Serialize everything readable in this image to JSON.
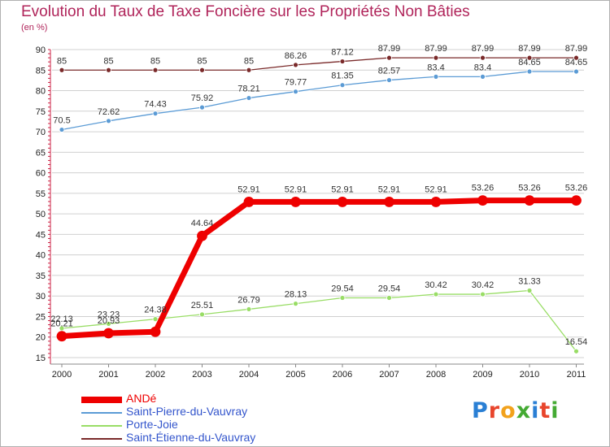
{
  "title": "Evolution du Taux de Taxe Foncière sur les Propriétés Non Bâties",
  "unit_label": "(en %)",
  "logo": "Proxiti",
  "colors": {
    "title": "#b0245a",
    "axis": "#cc2244",
    "grid": "#d0d0d0"
  },
  "chart_data": {
    "type": "line",
    "title": "Evolution du Taux de Taxe Foncière sur les Propriétés Non Bâties",
    "ylabel": "(en %)",
    "xlabel": "",
    "ylim": [
      15,
      90
    ],
    "yticks": [
      15,
      20,
      25,
      30,
      35,
      40,
      45,
      50,
      55,
      60,
      65,
      70,
      75,
      80,
      85,
      90
    ],
    "grid": true,
    "categories": [
      "2000",
      "2001",
      "2002",
      "2003",
      "2004",
      "2005",
      "2006",
      "2007",
      "2008",
      "2009",
      "2010",
      "2011"
    ],
    "series": [
      {
        "name": "ANDé",
        "color": "#ee0000",
        "values": [
          20.21,
          20.93,
          21.28,
          44.64,
          52.91,
          52.91,
          52.91,
          52.91,
          52.91,
          53.26,
          53.26,
          53.26
        ],
        "labels": [
          "20.21",
          "20.93",
          "",
          "44.64",
          "52.91",
          "52.91",
          "52.91",
          "52.91",
          "52.91",
          "53.26",
          "53.26",
          "53.26"
        ]
      },
      {
        "name": "Saint-Pierre-du-Vauvray",
        "color": "#5b9bd5",
        "values": [
          70.5,
          72.62,
          74.43,
          75.92,
          78.21,
          79.77,
          81.35,
          82.57,
          83.4,
          83.4,
          84.65,
          84.65
        ],
        "labels": [
          "70.5",
          "72.62",
          "74.43",
          "75.92",
          "78.21",
          "79.77",
          "81.35",
          "82.57",
          "83.4",
          "83.4",
          "84.65",
          "84.65"
        ]
      },
      {
        "name": "Porte-Joie",
        "color": "#99dd66",
        "values": [
          22.13,
          23.23,
          24.38,
          25.51,
          26.79,
          28.13,
          29.54,
          29.54,
          30.42,
          30.42,
          31.33,
          16.54
        ],
        "labels": [
          "22.13",
          "23.23",
          "24.38",
          "25.51",
          "26.79",
          "28.13",
          "29.54",
          "29.54",
          "30.42",
          "30.42",
          "31.33",
          "16.54"
        ]
      },
      {
        "name": "Saint-Étienne-du-Vauvray",
        "color": "#7a2a2a",
        "values": [
          85,
          85,
          85,
          85,
          85,
          86.26,
          87.12,
          87.99,
          87.99,
          87.99,
          87.99,
          87.99
        ],
        "labels": [
          "85",
          "85",
          "85",
          "85",
          "85",
          "86.26",
          "87.12",
          "87.99",
          "87.99",
          "87.99",
          "87.99",
          "87.99"
        ]
      }
    ],
    "legend_position": "bottom-left"
  }
}
